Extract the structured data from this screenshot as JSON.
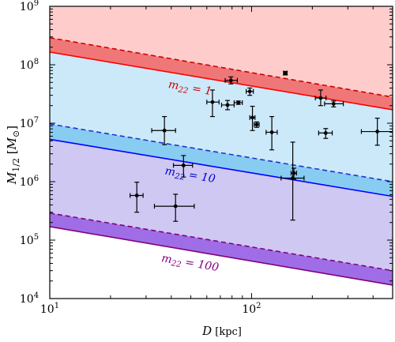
{
  "chart_data": {
    "type": "scatter",
    "xscale": "log",
    "yscale": "log",
    "xlim": [
      10,
      500
    ],
    "ylim": [
      10000,
      1000000000
    ],
    "xlabel": "D [kpc]",
    "ylabel": "M_1/2 [M_⊙]",
    "x_ticks": [
      {
        "value": 10,
        "base": "10",
        "exp": "1"
      },
      {
        "value": 100,
        "base": "10",
        "exp": "2"
      }
    ],
    "y_ticks": [
      {
        "value": 10000,
        "base": "10",
        "exp": "4"
      },
      {
        "value": 100000,
        "base": "10",
        "exp": "5"
      },
      {
        "value": 1000000,
        "base": "10",
        "exp": "6"
      },
      {
        "value": 10000000,
        "base": "10",
        "exp": "7"
      },
      {
        "value": 100000000,
        "base": "10",
        "exp": "8"
      },
      {
        "value": 1000000000,
        "base": "10",
        "exp": "9"
      }
    ],
    "bands": [
      {
        "label": "m22 = 1",
        "label_sub": "22",
        "label_value": "1",
        "solid": {
          "at_x10": 165000000,
          "at_x500": 17000000
        },
        "dashed": {
          "at_x10": 290000000,
          "at_x500": 28000000
        },
        "solid_color": "#ff0000",
        "dashed_color": "#cc0000",
        "fill_color": "#f07777",
        "label_color": "#cc0000",
        "label_x": 11.2
      },
      {
        "label": "m22 = 10",
        "label_sub": "22",
        "label_value": "10",
        "solid": {
          "at_x10": 5300000,
          "at_x500": 560000
        },
        "dashed": {
          "at_x10": 9700000,
          "at_x500": 1000000
        },
        "solid_color": "#0000ff",
        "dashed_color": "#2233cc",
        "fill_color": "#88ccf2",
        "label_color": "#0000cc",
        "label_x": 11.2
      },
      {
        "label": "m22 = 100",
        "label_sub": "22",
        "label_value": "100",
        "solid": {
          "at_x10": 170000,
          "at_x500": 17000
        },
        "dashed": {
          "at_x10": 290000,
          "at_x500": 30000
        },
        "solid_color": "#800080",
        "dashed_color": "#800080",
        "fill_color": "#9f6ee6",
        "label_color": "#800080",
        "label_x": 11.2
      }
    ],
    "region_colors": [
      "#ffcccc",
      "#cce9fa",
      "#cfc8f2"
    ],
    "points": [
      {
        "x": 27,
        "y": 580000,
        "xerr": [
          2,
          2
        ],
        "yerr": [
          280000,
          400000
        ]
      },
      {
        "x": 37,
        "y": 7500000,
        "xerr": [
          5,
          5
        ],
        "yerr": [
          3200000,
          5500000
        ]
      },
      {
        "x": 42,
        "y": 380000,
        "xerr": [
          9,
          10
        ],
        "yerr": [
          170000,
          230000
        ]
      },
      {
        "x": 46,
        "y": 1900000,
        "xerr": [
          5,
          5
        ],
        "yerr": [
          700000,
          900000
        ]
      },
      {
        "x": 64,
        "y": 23000000,
        "xerr": [
          4,
          5
        ],
        "yerr": [
          10000000,
          14000000
        ]
      },
      {
        "x": 76,
        "y": 20500000,
        "xerr": [
          5,
          6
        ],
        "yerr": [
          3500000,
          4000000
        ]
      },
      {
        "x": 79,
        "y": 54000000,
        "xerr": [
          5,
          6
        ],
        "yerr": [
          7000000,
          8000000
        ]
      },
      {
        "x": 86,
        "y": 22500000,
        "xerr": [
          4,
          4
        ],
        "yerr": [
          1500000,
          1500000
        ]
      },
      {
        "x": 98,
        "y": 35000000,
        "xerr": [
          4,
          4
        ],
        "yerr": [
          5000000,
          5000000
        ]
      },
      {
        "x": 101,
        "y": 12500000,
        "xerr": [
          3,
          3
        ],
        "yerr": [
          5000000,
          7000000
        ]
      },
      {
        "x": 106,
        "y": 9500000,
        "xerr": [
          3,
          3
        ],
        "yerr": [
          1000000,
          1000000
        ]
      },
      {
        "x": 126,
        "y": 7000000,
        "xerr": [
          8,
          8
        ],
        "yerr": [
          3500000,
          6000000
        ]
      },
      {
        "x": 147,
        "y": 72000000,
        "xerr": [
          3,
          3
        ],
        "yerr": [
          5000000,
          5000000
        ]
      },
      {
        "x": 160,
        "y": 1150000,
        "xerr": [
          20,
          22
        ],
        "yerr": [
          930000,
          3600000
        ]
      },
      {
        "x": 162,
        "y": 1400000,
        "xerr": [
          5,
          5
        ],
        "yerr": [
          300000,
          300000
        ]
      },
      {
        "x": 220,
        "y": 27000000,
        "xerr": [
          13,
          14
        ],
        "yerr": [
          7000000,
          10000000
        ]
      },
      {
        "x": 233,
        "y": 6800000,
        "xerr": [
          18,
          18
        ],
        "yerr": [
          1300000,
          1300000
        ]
      },
      {
        "x": 255,
        "y": 21500000,
        "xerr": [
          25,
          30
        ],
        "yerr": [
          2500000,
          2500000
        ]
      },
      {
        "x": 420,
        "y": 7200000,
        "xerr": [
          70,
          80
        ],
        "yerr": [
          3000000,
          5000000
        ]
      }
    ]
  }
}
